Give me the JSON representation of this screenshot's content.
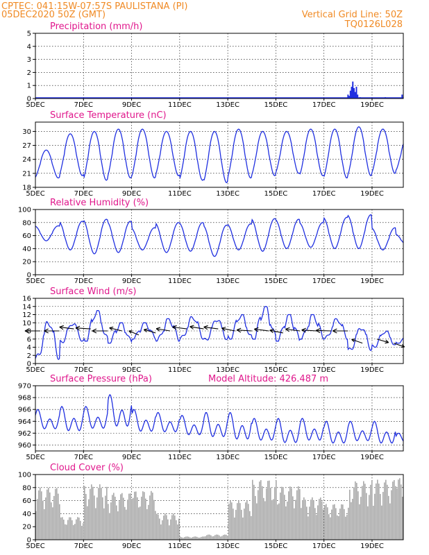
{
  "header": {
    "line1": "CPTEC:   041:15W-07:57S  PAULISTANA (PI)",
    "line2": "05DEC2020 50Z (GMT)",
    "right1": "Vertical Grid Line: 50Z",
    "right2": "TQ0126L028"
  },
  "x_axis": {
    "start": "05DEC2020",
    "end": "20DEC2020",
    "ticks": [
      "5DEC",
      "7DEC",
      "9DEC",
      "11DEC",
      "13DEC",
      "15DEC",
      "17DEC",
      "19DEC"
    ],
    "tick_days": [
      0,
      2,
      4,
      6,
      8,
      10,
      12,
      14
    ],
    "span_days": 15.3
  },
  "chart_data": [
    {
      "id": "precip",
      "type": "bar",
      "title": "Precipitation (mm/h)",
      "ylim": [
        0,
        5
      ],
      "yticks": [
        0,
        1,
        2,
        3,
        4,
        5
      ],
      "color": "#1f2fe0",
      "x_days": [
        13.0,
        13.05,
        13.1,
        13.15,
        13.2,
        13.25,
        13.3,
        13.35,
        13.4,
        13.5,
        14.55,
        15.25
      ],
      "values": [
        0.3,
        0.2,
        0.6,
        0.9,
        1.3,
        0.8,
        0.5,
        0.9,
        0.3,
        0.1,
        0.1,
        0.3
      ]
    },
    {
      "id": "temp",
      "type": "line",
      "title": "Surface Temperature (nC)",
      "ylim": [
        18,
        32
      ],
      "yticks": [
        18,
        21,
        24,
        27,
        30
      ],
      "color": "#1f2fe0",
      "daily_max": [
        26,
        29.5,
        30,
        30.5,
        30.5,
        30,
        30,
        30,
        30.5,
        30,
        30,
        30.5,
        30.5,
        31,
        30.5,
        28.5
      ],
      "daily_min": [
        20,
        20.5,
        19.5,
        20,
        20,
        20.5,
        19.5,
        19,
        20,
        20.5,
        21,
        20.5,
        20,
        20.5,
        21,
        21.5
      ]
    },
    {
      "id": "rh",
      "type": "line",
      "title": "Relative Humidity (%)",
      "ylim": [
        0,
        100
      ],
      "yticks": [
        0,
        20,
        40,
        60,
        80,
        100
      ],
      "color": "#1f2fe0",
      "daily_max": [
        75,
        82,
        85,
        82,
        72,
        80,
        80,
        76,
        78,
        86,
        85,
        80,
        88,
        92,
        72,
        62
      ],
      "daily_min": [
        52,
        38,
        32,
        34,
        38,
        34,
        36,
        28,
        38,
        36,
        40,
        42,
        40,
        40,
        38,
        45
      ]
    },
    {
      "id": "wind",
      "type": "line",
      "title": "Surface Wind (m/s)",
      "ylim": [
        0,
        16
      ],
      "yticks": [
        0,
        2,
        4,
        6,
        8,
        10,
        12,
        14,
        16
      ],
      "color": "#1f2fe0",
      "daily_max": [
        10.5,
        10,
        13,
        10,
        10,
        11,
        11.5,
        11,
        12,
        14,
        12,
        12,
        11,
        9,
        8,
        7
      ],
      "daily_min": [
        1,
        5,
        5.5,
        5,
        6,
        5.5,
        6,
        5.5,
        6,
        6,
        5.5,
        6,
        6,
        3,
        4,
        5
      ],
      "arrows": {
        "x_days": [
          0.2,
          1.0,
          1.6,
          2.3,
          3.0,
          3.6,
          4.3,
          5.0,
          5.6,
          6.3,
          7.0,
          7.6,
          8.3,
          9.0,
          9.7,
          10.3,
          11.0,
          11.7,
          12.3,
          13.0,
          13.6,
          14.2,
          14.9
        ],
        "speed": [
          8,
          8,
          8.5,
          8.5,
          8,
          8,
          7,
          7.5,
          8,
          8.5,
          8.5,
          8.5,
          8,
          8,
          8,
          7.5,
          8,
          8,
          8,
          8,
          5,
          6,
          5
        ],
        "dir_deg": [
          180,
          180,
          200,
          190,
          180,
          215,
          230,
          220,
          205,
          200,
          205,
          200,
          210,
          190,
          200,
          210,
          200,
          190,
          185,
          180,
          225,
          40,
          45
        ]
      }
    },
    {
      "id": "press",
      "type": "line",
      "title": "Surface Pressure (hPa)",
      "subtitle": "Model Altitude: 426.487 m",
      "ylim": [
        959,
        970
      ],
      "yticks": [
        960,
        962,
        964,
        966,
        968,
        970
      ],
      "color": "#1f2fe0",
      "daily_max": [
        966,
        966.5,
        966.5,
        968.5,
        966,
        965.5,
        965,
        965.5,
        965.5,
        964.5,
        964.5,
        964.5,
        964,
        964,
        964,
        962
      ],
      "daily_min": [
        962,
        961.5,
        962,
        962,
        961.5,
        961.5,
        961,
        960.5,
        960,
        960,
        959.5,
        960,
        959.5,
        960,
        959.5,
        960
      ]
    },
    {
      "id": "cloud",
      "type": "bar",
      "title": "Cloud Cover (%)",
      "ylim": [
        0,
        100
      ],
      "yticks": [
        0,
        20,
        40,
        60,
        80,
        100
      ],
      "color": "#a8a8a8",
      "daily_level": [
        80,
        35,
        85,
        72,
        75,
        40,
        5,
        8,
        60,
        92,
        82,
        65,
        55,
        90,
        92,
        95
      ]
    }
  ]
}
